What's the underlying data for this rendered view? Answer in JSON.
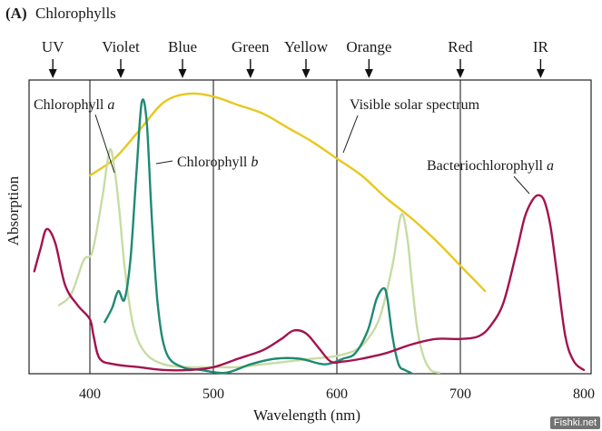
{
  "panel_label": "(A)",
  "figure_title": "Chlorophylls",
  "watermark": "Fishki.net",
  "chart_data": {
    "type": "line",
    "title": "Chlorophylls",
    "xlabel": "Wavelength (nm)",
    "ylabel": "Absorption",
    "xlim": [
      350,
      810
    ],
    "ylim": [
      0,
      1
    ],
    "x_ticks": [
      400,
      500,
      600,
      700,
      800
    ],
    "vertical_gridlines": [
      400,
      500,
      600,
      700
    ],
    "grid": false,
    "spectrum_bands": [
      {
        "label": "UV",
        "x": 370
      },
      {
        "label": "Violet",
        "x": 425
      },
      {
        "label": "Blue",
        "x": 475
      },
      {
        "label": "Green",
        "x": 530
      },
      {
        "label": "Yellow",
        "x": 575
      },
      {
        "label": "Orange",
        "x": 626
      },
      {
        "label": "Red",
        "x": 700
      },
      {
        "label": "IR",
        "x": 765
      }
    ],
    "series": [
      {
        "name": "Visible solar spectrum",
        "color": "#e8c81e",
        "x": [
          400,
          420,
          440,
          460,
          480,
          500,
          520,
          540,
          560,
          580,
          600,
          620,
          640,
          660,
          680,
          700,
          720
        ],
        "values": [
          0.7,
          0.76,
          0.86,
          0.96,
          0.99,
          0.98,
          0.95,
          0.92,
          0.87,
          0.82,
          0.76,
          0.7,
          0.62,
          0.55,
          0.47,
          0.38,
          0.29
        ]
      },
      {
        "name": "Chlorophyll a",
        "color": "#c7dca4",
        "x": [
          375,
          385,
          395,
          402,
          410,
          416,
          420,
          424,
          428,
          435,
          445,
          460,
          480,
          500,
          520,
          540,
          560,
          580,
          600,
          615,
          625,
          635,
          645,
          652,
          657,
          661,
          665,
          670,
          676,
          683
        ],
        "values": [
          0.24,
          0.28,
          0.4,
          0.43,
          0.62,
          0.79,
          0.72,
          0.57,
          0.38,
          0.17,
          0.07,
          0.03,
          0.02,
          0.02,
          0.02,
          0.03,
          0.04,
          0.05,
          0.06,
          0.08,
          0.12,
          0.2,
          0.38,
          0.56,
          0.48,
          0.31,
          0.16,
          0.06,
          0.01,
          0.0
        ]
      },
      {
        "name": "Chlorophyll b",
        "color": "#1f8a72",
        "x": [
          412,
          418,
          423,
          428,
          433,
          438,
          442,
          446,
          450,
          455,
          462,
          475,
          490,
          510,
          530,
          550,
          570,
          590,
          605,
          615,
          625,
          632,
          638,
          641,
          645,
          650,
          655,
          660
        ],
        "values": [
          0.18,
          0.23,
          0.29,
          0.26,
          0.41,
          0.73,
          0.96,
          0.89,
          0.56,
          0.24,
          0.07,
          0.02,
          0.01,
          0.0,
          0.03,
          0.05,
          0.05,
          0.03,
          0.05,
          0.07,
          0.15,
          0.26,
          0.3,
          0.26,
          0.13,
          0.03,
          0.01,
          0.0
        ]
      },
      {
        "name": "Bacteriochlorophyll a",
        "color": "#a3134e",
        "x": [
          355,
          360,
          365,
          372,
          380,
          390,
          400,
          403,
          408,
          420,
          440,
          460,
          480,
          500,
          520,
          540,
          555,
          565,
          575,
          585,
          595,
          605,
          620,
          640,
          660,
          680,
          700,
          715,
          725,
          735,
          745,
          752,
          758,
          763,
          768,
          773,
          778,
          785,
          792,
          800
        ],
        "values": [
          0.36,
          0.44,
          0.51,
          0.46,
          0.31,
          0.24,
          0.19,
          0.13,
          0.05,
          0.03,
          0.02,
          0.01,
          0.01,
          0.02,
          0.05,
          0.08,
          0.12,
          0.15,
          0.14,
          0.09,
          0.04,
          0.04,
          0.05,
          0.07,
          0.1,
          0.12,
          0.12,
          0.13,
          0.17,
          0.25,
          0.42,
          0.55,
          0.61,
          0.63,
          0.61,
          0.52,
          0.36,
          0.13,
          0.04,
          0.01
        ]
      }
    ],
    "annotations": [
      {
        "text": "Chlorophyll ",
        "italic": "a",
        "series": "Chlorophyll a"
      },
      {
        "text": "Chlorophyll ",
        "italic": "b",
        "series": "Chlorophyll b"
      },
      {
        "text": "Visible solar spectrum",
        "italic": "",
        "series": "Visible solar spectrum"
      },
      {
        "text": "Bacteriochlorophyll ",
        "italic": "a",
        "series": "Bacteriochlorophyll a"
      }
    ]
  }
}
